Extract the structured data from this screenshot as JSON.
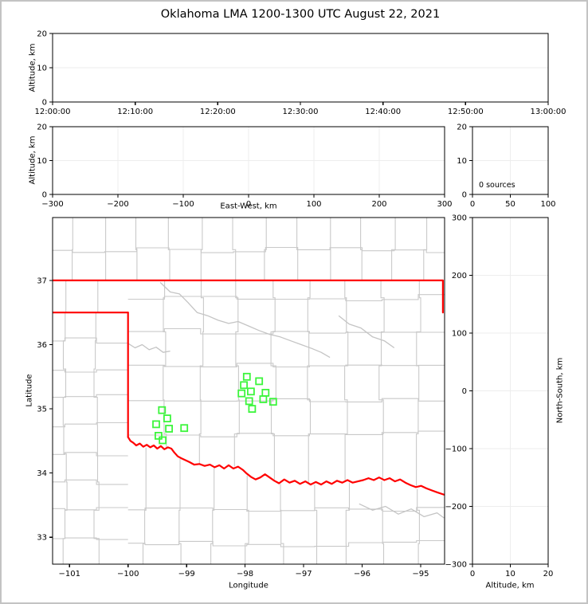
{
  "title": "Oklahoma LMA 1200-1300 UTC August 22, 2021",
  "colors": {
    "state_border": "#ff0000",
    "station": "#3cf53c",
    "county": "#c9c9c9",
    "river_gray": "#c4c4c4",
    "grid": "#ededed",
    "axis": "#000000",
    "frame": "#c3c3c3"
  },
  "panels": {
    "time_height": {
      "ylabel": "Altitude, km",
      "yticks": [
        "0",
        "10",
        "20"
      ],
      "xticks": [
        "12:00:00",
        "12:10:00",
        "12:20:00",
        "12:30:00",
        "12:40:00",
        "12:50:00",
        "13:00:00"
      ]
    },
    "ew_height": {
      "ylabel": "Altitude, km",
      "xlabel": "East-West, km",
      "yticks": [
        "0",
        "10",
        "20"
      ],
      "xticks": [
        "−300",
        "−200",
        "−100",
        "0",
        "100",
        "200",
        "300"
      ]
    },
    "histogram": {
      "annotation": "0 sources",
      "yticks": [
        "0",
        "10",
        "20"
      ],
      "xticks": [
        "0",
        "50",
        "100"
      ]
    },
    "map": {
      "xlabel": "Longitude",
      "ylabel": "Latitude",
      "xticks": [
        "−101",
        "−100",
        "−99",
        "−98",
        "−97",
        "−96",
        "−95"
      ],
      "xtick_values": [
        -101,
        -100,
        -99,
        -98,
        -97,
        -96,
        -95
      ],
      "yticks": [
        "33",
        "34",
        "35",
        "36",
        "37"
      ],
      "ytick_values": [
        33,
        34,
        35,
        36,
        37
      ],
      "xlim": [
        -101.29,
        -94.59
      ],
      "ylim": [
        32.58,
        37.98
      ]
    },
    "ns_height": {
      "xlabel": "Altitude, km",
      "ylabel": "North-South, km",
      "xticks": [
        "0",
        "10",
        "20"
      ],
      "xtick_values": [
        0,
        10,
        20
      ],
      "yticks": [
        "300",
        "200",
        "100",
        "0",
        "−100",
        "−200",
        "−300"
      ],
      "ytick_values": [
        300,
        200,
        100,
        0,
        -100,
        -200,
        -300
      ]
    }
  },
  "chart_data": {
    "type": "scatter",
    "title": "Oklahoma LMA 1200-1300 UTC August 22, 2021",
    "source_count_annotation": "0 sources",
    "panels": [
      {
        "id": "time-height",
        "type": "line",
        "ylabel": "Altitude, km",
        "ylim": [
          0,
          20
        ],
        "x_range_labels": [
          "12:00:00",
          "13:00:00"
        ],
        "series": []
      },
      {
        "id": "east-west-height",
        "type": "line",
        "xlabel": "East-West, km",
        "xlim": [
          -300,
          300
        ],
        "ylim": [
          0,
          20
        ],
        "series": []
      },
      {
        "id": "altitude-histogram",
        "type": "line",
        "xlim": [
          0,
          100
        ],
        "ylim": [
          0,
          20
        ],
        "annotation": "0 sources",
        "series": []
      },
      {
        "id": "plan-view-map",
        "type": "scatter",
        "xlabel": "Longitude",
        "ylabel": "Latitude",
        "xlim": [
          -101.29,
          -94.59
        ],
        "ylim": [
          32.58,
          37.98
        ]
      },
      {
        "id": "north-south-height",
        "type": "line",
        "xlabel": "Altitude, km",
        "ylabel": "North-South, km",
        "xlim": [
          0,
          20
        ],
        "ylim": [
          -300,
          300
        ],
        "series": []
      }
    ],
    "stations": [
      [
        -99.42,
        34.98
      ],
      [
        -99.33,
        34.85
      ],
      [
        -99.52,
        34.76
      ],
      [
        -99.3,
        34.69
      ],
      [
        -99.04,
        34.7
      ],
      [
        -99.48,
        34.58
      ],
      [
        -99.41,
        34.51
      ],
      [
        -97.97,
        35.5
      ],
      [
        -97.76,
        35.43
      ],
      [
        -98.02,
        35.37
      ],
      [
        -97.9,
        35.27
      ],
      [
        -98.06,
        35.24
      ],
      [
        -97.65,
        35.25
      ],
      [
        -97.93,
        35.12
      ],
      [
        -97.69,
        35.15
      ],
      [
        -97.52,
        35.11
      ],
      [
        -97.88,
        35.0
      ]
    ],
    "map_layers": {
      "state_border_segments": [
        [
          [
            -101.29,
            37.0
          ],
          [
            -94.618,
            37.0
          ],
          [
            -94.618,
            36.5
          ]
        ],
        [
          [
            -101.29,
            36.5
          ],
          [
            -100.0,
            36.5
          ]
        ],
        [
          [
            -100.0,
            36.5
          ],
          [
            -100.0,
            34.56
          ]
        ]
      ],
      "red_river": [
        [
          -100.0,
          34.56
        ],
        [
          -99.96,
          34.5
        ],
        [
          -99.91,
          34.47
        ],
        [
          -99.86,
          34.43
        ],
        [
          -99.8,
          34.46
        ],
        [
          -99.74,
          34.41
        ],
        [
          -99.68,
          34.44
        ],
        [
          -99.62,
          34.4
        ],
        [
          -99.56,
          34.43
        ],
        [
          -99.5,
          34.38
        ],
        [
          -99.44,
          34.42
        ],
        [
          -99.38,
          34.37
        ],
        [
          -99.32,
          34.4
        ],
        [
          -99.26,
          34.38
        ],
        [
          -99.21,
          34.32
        ],
        [
          -99.15,
          34.26
        ],
        [
          -99.09,
          34.23
        ],
        [
          -99.02,
          34.2
        ],
        [
          -98.95,
          34.17
        ],
        [
          -98.87,
          34.13
        ],
        [
          -98.78,
          34.14
        ],
        [
          -98.69,
          34.11
        ],
        [
          -98.6,
          34.13
        ],
        [
          -98.52,
          34.09
        ],
        [
          -98.44,
          34.12
        ],
        [
          -98.36,
          34.07
        ],
        [
          -98.28,
          34.12
        ],
        [
          -98.2,
          34.07
        ],
        [
          -98.12,
          34.1
        ],
        [
          -98.04,
          34.05
        ],
        [
          -97.97,
          33.99
        ],
        [
          -97.9,
          33.94
        ],
        [
          -97.82,
          33.9
        ],
        [
          -97.74,
          33.93
        ],
        [
          -97.66,
          33.98
        ],
        [
          -97.58,
          33.93
        ],
        [
          -97.5,
          33.88
        ],
        [
          -97.42,
          33.84
        ],
        [
          -97.33,
          33.9
        ],
        [
          -97.24,
          33.85
        ],
        [
          -97.15,
          33.88
        ],
        [
          -97.06,
          33.83
        ],
        [
          -96.97,
          33.87
        ],
        [
          -96.88,
          33.82
        ],
        [
          -96.79,
          33.86
        ],
        [
          -96.7,
          33.82
        ],
        [
          -96.61,
          33.87
        ],
        [
          -96.52,
          33.83
        ],
        [
          -96.43,
          33.88
        ],
        [
          -96.34,
          33.85
        ],
        [
          -96.25,
          33.89
        ],
        [
          -96.16,
          33.85
        ],
        [
          -96.07,
          33.87
        ],
        [
          -95.98,
          33.89
        ],
        [
          -95.89,
          33.92
        ],
        [
          -95.8,
          33.89
        ],
        [
          -95.71,
          33.93
        ],
        [
          -95.62,
          33.89
        ],
        [
          -95.53,
          33.92
        ],
        [
          -95.44,
          33.87
        ],
        [
          -95.35,
          33.9
        ],
        [
          -95.26,
          33.85
        ],
        [
          -95.17,
          33.81
        ],
        [
          -95.08,
          33.78
        ],
        [
          -94.99,
          33.8
        ],
        [
          -94.9,
          33.76
        ],
        [
          -94.81,
          33.73
        ],
        [
          -94.72,
          33.7
        ],
        [
          -94.59,
          33.66
        ]
      ],
      "rivers": [
        [
          [
            -99.45,
            36.97
          ],
          [
            -99.28,
            36.82
          ],
          [
            -99.12,
            36.79
          ],
          [
            -98.98,
            36.66
          ],
          [
            -98.82,
            36.5
          ],
          [
            -98.64,
            36.45
          ],
          [
            -98.46,
            36.38
          ],
          [
            -98.28,
            36.33
          ],
          [
            -98.12,
            36.36
          ],
          [
            -97.94,
            36.29
          ],
          [
            -97.76,
            36.22
          ],
          [
            -97.58,
            36.16
          ],
          [
            -97.4,
            36.12
          ],
          [
            -97.22,
            36.06
          ],
          [
            -97.04,
            36.0
          ],
          [
            -96.86,
            35.94
          ],
          [
            -96.7,
            35.88
          ],
          [
            -96.55,
            35.8
          ]
        ],
        [
          [
            -100.0,
            36.02
          ],
          [
            -99.88,
            35.95
          ],
          [
            -99.76,
            36.0
          ],
          [
            -99.64,
            35.92
          ],
          [
            -99.52,
            35.96
          ],
          [
            -99.4,
            35.88
          ],
          [
            -99.28,
            35.9
          ]
        ],
        [
          [
            -96.4,
            36.45
          ],
          [
            -96.22,
            36.32
          ],
          [
            -96.02,
            36.26
          ],
          [
            -95.82,
            36.12
          ],
          [
            -95.62,
            36.06
          ],
          [
            -95.45,
            35.95
          ]
        ],
        [
          [
            -96.05,
            33.52
          ],
          [
            -95.82,
            33.42
          ],
          [
            -95.6,
            33.48
          ],
          [
            -95.38,
            33.36
          ],
          [
            -95.16,
            33.44
          ],
          [
            -94.94,
            33.32
          ],
          [
            -94.72,
            33.38
          ],
          [
            -94.6,
            33.3
          ]
        ]
      ],
      "county_regions": [
        {
          "name": "kansas",
          "x0": -101.29,
          "x1": -94.59,
          "ytop": 37.98,
          "ybot": 37.0,
          "cols": [
            -100.95,
            -100.4,
            -99.85,
            -99.3,
            -98.75,
            -98.2,
            -97.65,
            -97.1,
            -96.55,
            -96.0,
            -95.45,
            -94.9
          ],
          "rows": [
            37.48
          ]
        },
        {
          "name": "ok-panhandle",
          "x0": -101.29,
          "x1": -100.0,
          "ytop": 37.0,
          "ybot": 36.5,
          "cols": [
            -101.04,
            -100.52
          ],
          "rows": []
        },
        {
          "name": "tx-panhandle",
          "x0": -101.29,
          "x1": -100.0,
          "ytop": 36.5,
          "ybot": 32.58,
          "cols": [
            -101.08,
            -100.54
          ],
          "rows": [
            36.06,
            35.62,
            35.18,
            34.74,
            34.3,
            33.86,
            33.42,
            32.98
          ]
        },
        {
          "name": "oklahoma",
          "x0": -100.0,
          "x1": -94.59,
          "ytop": 37.0,
          "ybot": 34.35,
          "clip_bottom_to_river": true,
          "cols": [
            -99.38,
            -98.76,
            -98.14,
            -97.52,
            -96.9,
            -96.28,
            -95.66,
            -95.04
          ],
          "rows": [
            36.73,
            36.2,
            35.67,
            35.14,
            34.61
          ]
        },
        {
          "name": "tx-south",
          "x0": -100.0,
          "x1": -94.59,
          "ytop": 33.95,
          "ybot": 32.58,
          "clip_top_to_river": true,
          "cols": [
            -99.71,
            -99.13,
            -98.55,
            -97.97,
            -97.39,
            -96.81,
            -96.23,
            -95.65,
            -95.07
          ],
          "rows": [
            33.42,
            32.9
          ]
        }
      ]
    }
  }
}
